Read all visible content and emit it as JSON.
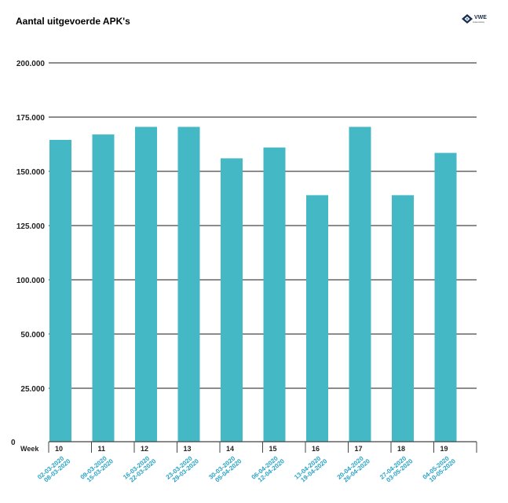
{
  "header": {
    "title": "Aantal uitgevoerde APK's",
    "logo_text": "VWE",
    "logo_sub": "Automotive",
    "logo_icon": "vwe-diamond-icon"
  },
  "colors": {
    "bar": "#45b8c5",
    "grid": "#666666",
    "date_label": "#2aa4c6"
  },
  "chart_data": {
    "type": "bar",
    "title": "Aantal uitgevoerde APK's",
    "x_axis_label": "Week",
    "categories": [
      "10",
      "11",
      "12",
      "13",
      "14",
      "15",
      "16",
      "17",
      "18",
      "19"
    ],
    "date_ranges": [
      [
        "02-03-2020",
        "08-03-2020"
      ],
      [
        "09-03-2020",
        "15-03-2020"
      ],
      [
        "16-03-2020",
        "22-03-2020"
      ],
      [
        "23-03-2020",
        "29-03-2020"
      ],
      [
        "30-03-2020",
        "05-04-2020"
      ],
      [
        "06-04-2020",
        "12-04-2020"
      ],
      [
        "13-04-2020",
        "19-04-2020"
      ],
      [
        "20-04-2020",
        "26-04-2020"
      ],
      [
        "27-04-2020",
        "03-05-2020"
      ],
      [
        "04-05-2020",
        "10-05-2020"
      ]
    ],
    "y_tick_labels": [
      "0",
      "25.000",
      "50.000",
      "100.000",
      "125.000",
      "150.000",
      "175.000",
      "200.000"
    ],
    "tick_values": [
      0,
      25000,
      50000,
      100000,
      125000,
      150000,
      175000,
      200000
    ],
    "values": [
      164500,
      167000,
      170500,
      170500,
      156000,
      161000,
      139000,
      170500,
      139000,
      158500
    ],
    "grid": true,
    "legend": "none"
  }
}
